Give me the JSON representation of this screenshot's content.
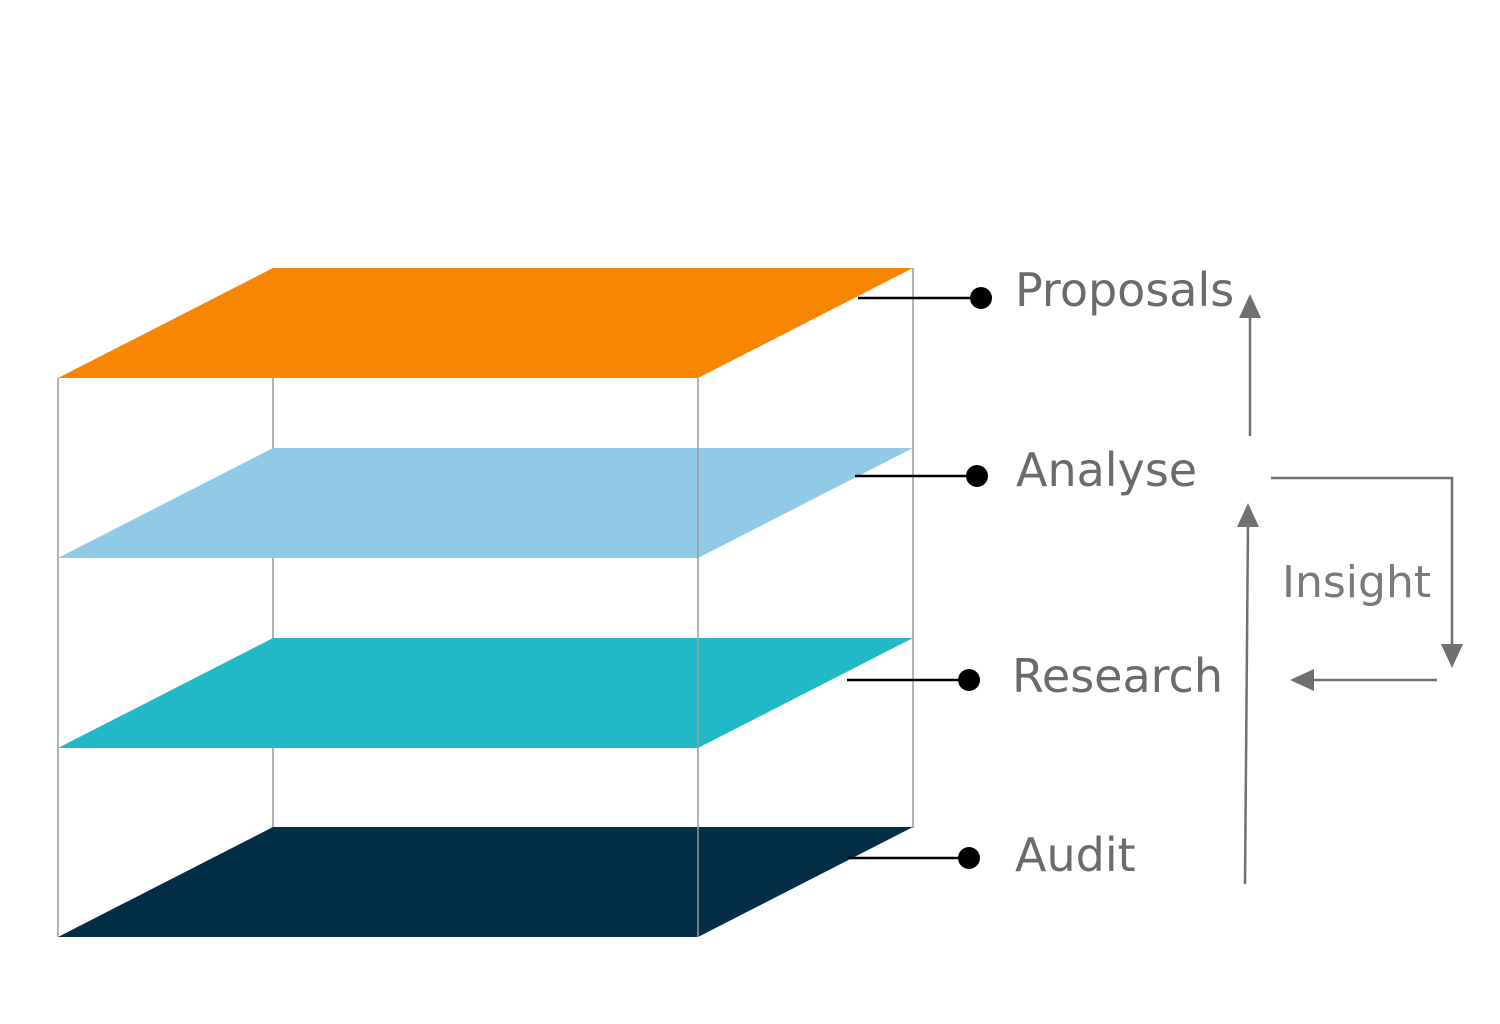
{
  "layers": [
    {
      "id": "proposals",
      "label": "Proposals",
      "color": "#f78604"
    },
    {
      "id": "analyse",
      "label": "Analyse",
      "color": "#90cae6"
    },
    {
      "id": "research",
      "label": "Research",
      "color": "#22b9c6"
    },
    {
      "id": "audit",
      "label": "Audit",
      "color": "#032f46"
    }
  ],
  "cycle": {
    "label": "Insight"
  },
  "colors": {
    "frame": "#9a9a9a",
    "arrow": "#707070",
    "label": "#6b6b6b",
    "leader": "#000000"
  }
}
